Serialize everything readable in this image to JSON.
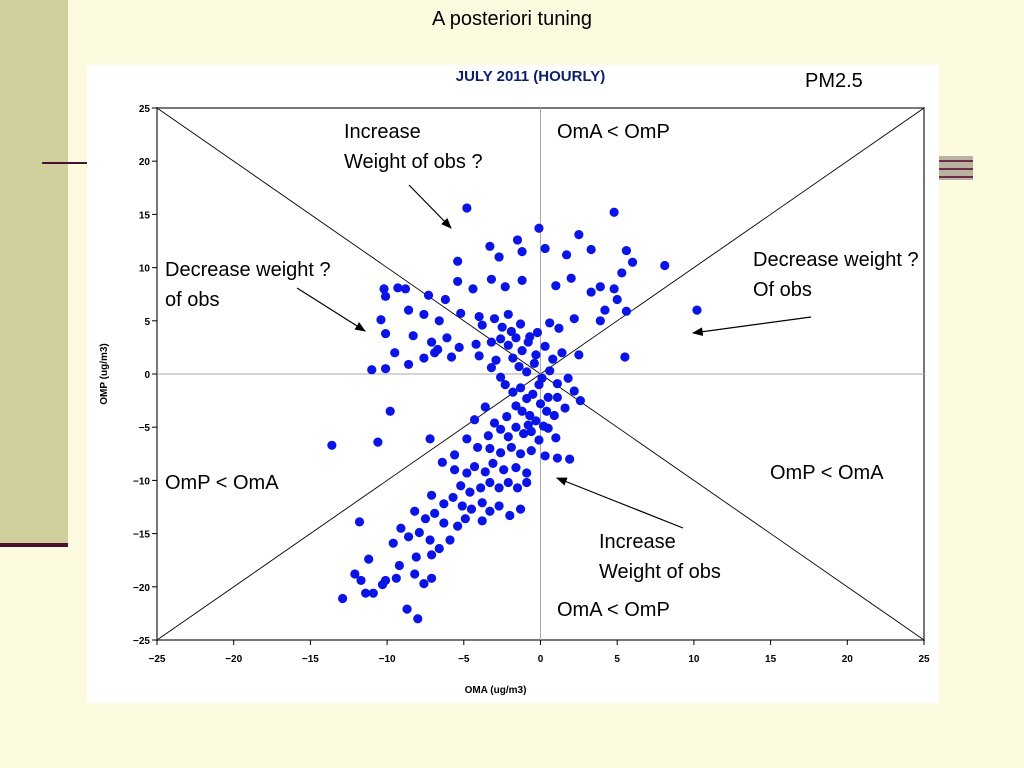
{
  "slide": {
    "title": "A posteriori tuning",
    "pollutant": "PM2.5"
  },
  "annotations": {
    "top_middle": [
      "Increase",
      "Weight of obs ?"
    ],
    "top_right_quadrant": "OmA < OmP",
    "left": [
      "Decrease weight ?",
      "of obs"
    ],
    "right": [
      "Decrease weight ?",
      "Of obs"
    ],
    "bottom_left": "OmP < OmA",
    "bottom_right": "OmP < OmA",
    "bottom_middle": [
      "Increase",
      "Weight of obs"
    ],
    "bottom_quadrant": "OmA  < OmP"
  },
  "chart_data": {
    "type": "scatter",
    "title": "JULY 2011  (HOURLY)",
    "xlabel": "OMA (ug/m3)",
    "ylabel": "OMP (ug/m3)",
    "xlim": [
      -25,
      25
    ],
    "ylim": [
      -25,
      25
    ],
    "xticks": [
      "-25",
      "-20",
      "-15",
      "-10",
      "-5",
      "0",
      "5",
      "10",
      "15",
      "20",
      "25"
    ],
    "yticks": [
      "-25",
      "-20",
      "-15",
      "-10",
      "-5",
      "0",
      "5",
      "10",
      "15",
      "20",
      "25"
    ],
    "reference_lines": [
      {
        "from": [
          -25,
          -25
        ],
        "to": [
          25,
          25
        ]
      },
      {
        "from": [
          -25,
          25
        ],
        "to": [
          25,
          -25
        ]
      },
      {
        "from": [
          0,
          -25
        ],
        "to": [
          0,
          25
        ]
      },
      {
        "from": [
          -25,
          0
        ],
        "to": [
          25,
          0
        ]
      }
    ],
    "marker_color": "#0a14e6",
    "points": [
      [
        -4.8,
        15.6
      ],
      [
        4.8,
        15.2
      ],
      [
        -1.5,
        12.6
      ],
      [
        -0.1,
        13.7
      ],
      [
        2.5,
        13.1
      ],
      [
        -3.3,
        12.0
      ],
      [
        1.7,
        11.2
      ],
      [
        3.3,
        11.7
      ],
      [
        5.6,
        11.6
      ],
      [
        -5.4,
        10.6
      ],
      [
        -1.2,
        11.5
      ],
      [
        0.3,
        11.8
      ],
      [
        -2.7,
        11.0
      ],
      [
        2.0,
        9.0
      ],
      [
        6.0,
        10.5
      ],
      [
        8.1,
        10.2
      ],
      [
        -10.2,
        8.0
      ],
      [
        -9.3,
        8.1
      ],
      [
        -8.8,
        8.0
      ],
      [
        -10.1,
        7.3
      ],
      [
        -7.3,
        7.4
      ],
      [
        -6.2,
        7.0
      ],
      [
        -5.4,
        8.7
      ],
      [
        -4.4,
        8.0
      ],
      [
        -3.2,
        8.9
      ],
      [
        -2.3,
        8.2
      ],
      [
        -1.2,
        8.8
      ],
      [
        1.0,
        8.3
      ],
      [
        3.3,
        7.7
      ],
      [
        3.9,
        8.2
      ],
      [
        4.8,
        8.0
      ],
      [
        5.3,
        9.5
      ],
      [
        5.6,
        5.9
      ],
      [
        4.2,
        6.0
      ],
      [
        5.0,
        7.0
      ],
      [
        -10.4,
        5.1
      ],
      [
        -8.6,
        6.0
      ],
      [
        -7.6,
        5.6
      ],
      [
        -6.6,
        5.0
      ],
      [
        -5.2,
        5.7
      ],
      [
        -4.0,
        5.4
      ],
      [
        -3.0,
        5.2
      ],
      [
        -2.1,
        5.6
      ],
      [
        1.2,
        4.3
      ],
      [
        2.2,
        5.2
      ],
      [
        3.9,
        5.0
      ],
      [
        -10.1,
        3.8
      ],
      [
        -8.3,
        3.6
      ],
      [
        -7.1,
        3.0
      ],
      [
        -6.1,
        3.4
      ],
      [
        -5.3,
        2.5
      ],
      [
        -4.2,
        2.8
      ],
      [
        -9.5,
        2.0
      ],
      [
        -6.9,
        2.0
      ],
      [
        -5.8,
        1.6
      ],
      [
        -11.0,
        0.4
      ],
      [
        -10.1,
        0.5
      ],
      [
        -8.6,
        0.9
      ],
      [
        -7.6,
        1.5
      ],
      [
        -6.7,
        2.3
      ],
      [
        -4.0,
        1.7
      ],
      [
        -3.2,
        0.6
      ],
      [
        -2.6,
        3.3
      ],
      [
        -2.1,
        2.7
      ],
      [
        -1.6,
        3.4
      ],
      [
        -1.2,
        2.2
      ],
      [
        -0.7,
        3.5
      ],
      [
        -0.3,
        1.8
      ],
      [
        0.3,
        2.6
      ],
      [
        0.8,
        1.4
      ],
      [
        1.4,
        2.0
      ],
      [
        2.5,
        1.8
      ],
      [
        -1.8,
        1.5
      ],
      [
        -1.4,
        0.7
      ],
      [
        -0.9,
        0.2
      ],
      [
        -0.4,
        1.0
      ],
      [
        0.1,
        -0.4
      ],
      [
        0.6,
        0.3
      ],
      [
        1.1,
        -0.9
      ],
      [
        1.8,
        -0.4
      ],
      [
        2.2,
        -1.6
      ],
      [
        2.6,
        -2.5
      ],
      [
        5.5,
        1.6
      ],
      [
        10.2,
        6.0
      ],
      [
        -2.6,
        -0.3
      ],
      [
        -2.3,
        -1.0
      ],
      [
        -1.8,
        -1.7
      ],
      [
        -1.3,
        -1.3
      ],
      [
        -0.9,
        -2.3
      ],
      [
        -0.5,
        -1.9
      ],
      [
        0.0,
        -2.8
      ],
      [
        0.4,
        -3.5
      ],
      [
        0.9,
        -3.9
      ],
      [
        -1.6,
        -3.0
      ],
      [
        -1.2,
        -3.5
      ],
      [
        -0.7,
        -3.9
      ],
      [
        -0.3,
        -4.4
      ],
      [
        1.1,
        -2.2
      ],
      [
        1.6,
        -3.2
      ],
      [
        -9.8,
        -3.5
      ],
      [
        -4.3,
        -4.3
      ],
      [
        -3.6,
        -3.1
      ],
      [
        -3.0,
        -4.6
      ],
      [
        -2.6,
        -5.2
      ],
      [
        -2.1,
        -5.9
      ],
      [
        -1.6,
        -5.0
      ],
      [
        -1.1,
        -5.6
      ],
      [
        -0.6,
        -5.4
      ],
      [
        -0.1,
        -6.2
      ],
      [
        0.5,
        -5.1
      ],
      [
        1.0,
        -6.0
      ],
      [
        -13.6,
        -6.7
      ],
      [
        -10.6,
        -6.4
      ],
      [
        -7.2,
        -6.1
      ],
      [
        -5.6,
        -7.6
      ],
      [
        -4.1,
        -6.9
      ],
      [
        -3.3,
        -7.0
      ],
      [
        -2.6,
        -7.4
      ],
      [
        -1.9,
        -6.9
      ],
      [
        -1.3,
        -7.5
      ],
      [
        -0.6,
        -7.2
      ],
      [
        0.3,
        -7.7
      ],
      [
        1.1,
        -7.9
      ],
      [
        1.9,
        -8.0
      ],
      [
        -6.4,
        -8.3
      ],
      [
        -5.6,
        -9.0
      ],
      [
        -4.8,
        -9.3
      ],
      [
        -4.3,
        -8.7
      ],
      [
        -3.6,
        -9.2
      ],
      [
        -3.1,
        -8.4
      ],
      [
        -2.4,
        -9.0
      ],
      [
        -1.6,
        -8.8
      ],
      [
        -0.9,
        -9.3
      ],
      [
        -5.2,
        -10.5
      ],
      [
        -4.6,
        -11.1
      ],
      [
        -3.9,
        -10.7
      ],
      [
        -3.3,
        -10.2
      ],
      [
        -2.7,
        -10.7
      ],
      [
        -2.1,
        -10.2
      ],
      [
        -1.5,
        -10.7
      ],
      [
        -0.9,
        -10.2
      ],
      [
        -7.1,
        -11.4
      ],
      [
        -6.3,
        -12.2
      ],
      [
        -5.7,
        -11.6
      ],
      [
        -5.1,
        -12.4
      ],
      [
        -4.5,
        -12.7
      ],
      [
        -3.8,
        -12.1
      ],
      [
        -3.3,
        -12.9
      ],
      [
        -2.7,
        -12.4
      ],
      [
        -2.0,
        -13.3
      ],
      [
        -1.3,
        -12.7
      ],
      [
        -8.2,
        -12.9
      ],
      [
        -7.5,
        -13.6
      ],
      [
        -6.9,
        -13.1
      ],
      [
        -6.3,
        -14.0
      ],
      [
        -5.4,
        -14.3
      ],
      [
        -4.9,
        -13.6
      ],
      [
        -3.8,
        -13.8
      ],
      [
        -11.8,
        -13.9
      ],
      [
        -9.1,
        -14.5
      ],
      [
        -8.6,
        -15.3
      ],
      [
        -7.9,
        -14.9
      ],
      [
        -7.2,
        -15.6
      ],
      [
        -6.6,
        -16.4
      ],
      [
        -5.9,
        -15.6
      ],
      [
        -9.6,
        -15.9
      ],
      [
        -8.1,
        -17.2
      ],
      [
        -7.1,
        -17.0
      ],
      [
        -11.2,
        -17.4
      ],
      [
        -9.2,
        -18.0
      ],
      [
        -9.4,
        -19.2
      ],
      [
        -8.2,
        -18.8
      ],
      [
        -7.6,
        -19.7
      ],
      [
        -7.1,
        -19.2
      ],
      [
        -12.1,
        -18.8
      ],
      [
        -11.7,
        -19.4
      ],
      [
        -11.4,
        -20.6
      ],
      [
        -10.9,
        -20.6
      ],
      [
        -10.1,
        -19.4
      ],
      [
        -10.3,
        -19.8
      ],
      [
        -12.9,
        -21.1
      ],
      [
        -8.7,
        -22.1
      ],
      [
        -8.0,
        -23.0
      ],
      [
        -3.8,
        4.6
      ],
      [
        -3.2,
        3.0
      ],
      [
        -2.5,
        4.4
      ],
      [
        -1.9,
        4.0
      ],
      [
        -1.3,
        4.7
      ],
      [
        -0.8,
        3.0
      ],
      [
        -0.2,
        3.9
      ],
      [
        0.6,
        4.8
      ],
      [
        -2.9,
        1.3
      ],
      [
        -0.1,
        -1.0
      ],
      [
        0.5,
        -2.2
      ],
      [
        -0.8,
        -4.8
      ],
      [
        0.2,
        -4.9
      ],
      [
        -2.2,
        -4.0
      ],
      [
        -3.4,
        -5.8
      ],
      [
        -4.8,
        -6.1
      ]
    ]
  }
}
